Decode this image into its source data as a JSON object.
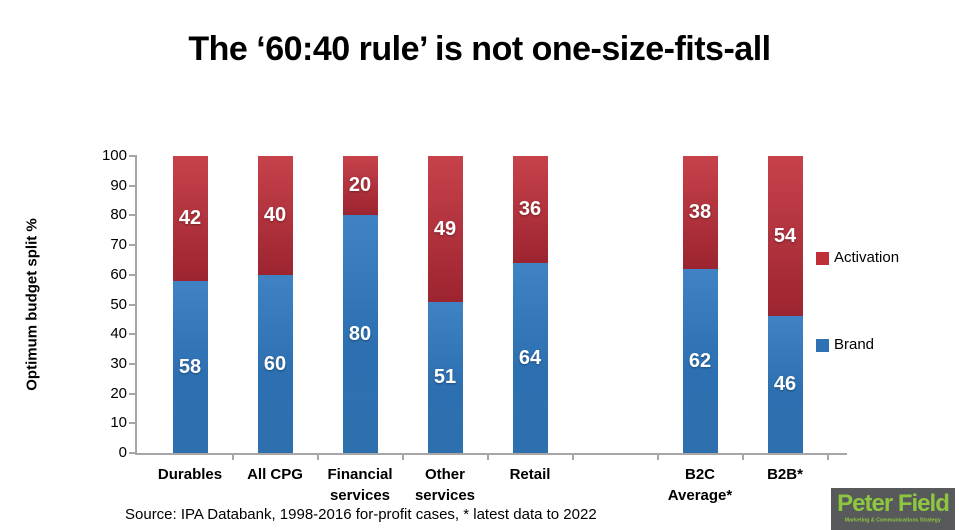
{
  "title": "The ‘60:40 rule’ is not one-size-fits-all",
  "chart_data": {
    "type": "bar",
    "stacked": true,
    "title": "The ‘60:40 rule’ is not one-size-fits-all",
    "xlabel": "",
    "ylabel": "Optimum budget split %",
    "ylim": [
      0,
      100
    ],
    "y_ticks": [
      0,
      10,
      20,
      30,
      40,
      50,
      60,
      70,
      80,
      90,
      100
    ],
    "grid": false,
    "legend_position": "right",
    "categories": [
      "Durables",
      "All CPG",
      "Financial\nservices",
      "Other\nservices",
      "Retail",
      "B2C\nAverage*",
      "B2B*"
    ],
    "series": [
      {
        "name": "Brand",
        "color": "#2e72b4",
        "values": [
          58,
          60,
          80,
          51,
          64,
          62,
          46
        ]
      },
      {
        "name": "Activation",
        "color": "#b02b37",
        "values": [
          42,
          40,
          20,
          49,
          36,
          38,
          54
        ]
      }
    ],
    "legend": [
      {
        "name": "Activation",
        "color": "#be2f38"
      },
      {
        "name": "Brand",
        "color": "#2e72b4"
      }
    ]
  },
  "source_note": "Source: IPA Databank, 1998-2016 for-profit cases, * latest data to 2022",
  "logo": {
    "name": "Peter Field",
    "tagline": "Marketing & Communications Strategy",
    "bg_color": "#58595b",
    "text_color": "#8dc63f"
  }
}
